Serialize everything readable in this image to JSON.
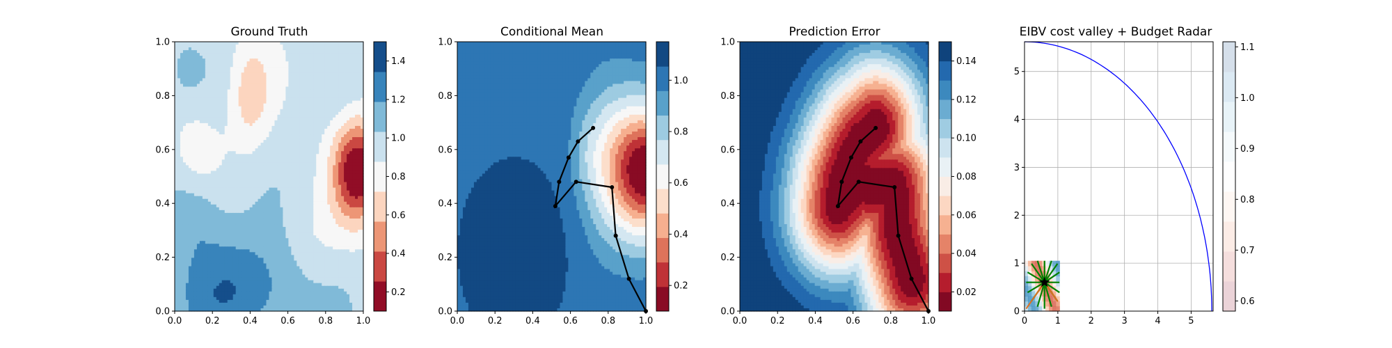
{
  "chart_data": [
    {
      "type": "heatmap",
      "title": "Ground Truth",
      "xlim": [
        0,
        1
      ],
      "ylim": [
        0,
        1
      ],
      "x_ticks": [
        "0.0",
        "0.2",
        "0.4",
        "0.6",
        "0.8",
        "1.0"
      ],
      "y_ticks": [
        "0.0",
        "0.2",
        "0.4",
        "0.6",
        "0.8",
        "1.0"
      ],
      "colorbar": {
        "range": [
          0.1,
          1.5
        ],
        "ticks": [
          "0.2",
          "0.4",
          "0.6",
          "0.8",
          "1.0",
          "1.2",
          "1.4"
        ],
        "tick_values": [
          0.2,
          0.4,
          0.6,
          0.8,
          1.0,
          1.2,
          1.4
        ]
      },
      "field": "ground_truth"
    },
    {
      "type": "heatmap",
      "title": "Conditional Mean",
      "xlim": [
        0,
        1
      ],
      "ylim": [
        0,
        1
      ],
      "x_ticks": [
        "0.0",
        "0.2",
        "0.4",
        "0.6",
        "0.8",
        "1.0"
      ],
      "y_ticks": [
        "0.0",
        "0.2",
        "0.4",
        "0.6",
        "0.8",
        "1.0"
      ],
      "colorbar": {
        "range": [
          0.1,
          1.15
        ],
        "ticks": [
          "0.2",
          "0.4",
          "0.6",
          "0.8",
          "1.0"
        ],
        "tick_values": [
          0.2,
          0.4,
          0.6,
          0.8,
          1.0
        ]
      },
      "field": "conditional_mean",
      "path": [
        [
          1.0,
          0.0
        ],
        [
          0.91,
          0.12
        ],
        [
          0.84,
          0.28
        ],
        [
          0.82,
          0.46
        ],
        [
          0.63,
          0.48
        ],
        [
          0.52,
          0.39
        ],
        [
          0.54,
          0.48
        ],
        [
          0.59,
          0.57
        ],
        [
          0.64,
          0.63
        ],
        [
          0.72,
          0.68
        ]
      ]
    },
    {
      "type": "heatmap",
      "title": "Prediction Error",
      "xlim": [
        0,
        1
      ],
      "ylim": [
        0,
        1
      ],
      "x_ticks": [
        "0.0",
        "0.2",
        "0.4",
        "0.6",
        "0.8",
        "1.0"
      ],
      "y_ticks": [
        "0.0",
        "0.2",
        "0.4",
        "0.6",
        "0.8",
        "1.0"
      ],
      "colorbar": {
        "range": [
          0.01,
          0.15
        ],
        "ticks": [
          "0.02",
          "0.04",
          "0.06",
          "0.08",
          "0.10",
          "0.12",
          "0.14"
        ],
        "tick_values": [
          0.02,
          0.04,
          0.06,
          0.08,
          0.1,
          0.12,
          0.14
        ]
      },
      "field": "prediction_error",
      "path": [
        [
          1.0,
          0.0
        ],
        [
          0.91,
          0.12
        ],
        [
          0.84,
          0.28
        ],
        [
          0.82,
          0.46
        ],
        [
          0.63,
          0.48
        ],
        [
          0.52,
          0.39
        ],
        [
          0.54,
          0.48
        ],
        [
          0.59,
          0.57
        ],
        [
          0.64,
          0.63
        ],
        [
          0.72,
          0.68
        ]
      ]
    },
    {
      "type": "heatmap",
      "title": "EIBV cost valley + Budget Radar",
      "xlim": [
        0,
        5.66
      ],
      "ylim": [
        0,
        5.62
      ],
      "grid": true,
      "x_ticks": [
        "0",
        "1",
        "2",
        "3",
        "4",
        "5"
      ],
      "x_tick_values": [
        0,
        1,
        2,
        3,
        4,
        5
      ],
      "y_ticks": [
        "0",
        "1",
        "2",
        "3",
        "4",
        "5"
      ],
      "y_tick_values": [
        0,
        1,
        2,
        3,
        4,
        5
      ],
      "colorbar": {
        "range": [
          0.58,
          1.11
        ],
        "ticks": [
          "0.6",
          "0.7",
          "0.8",
          "0.9",
          "1.0",
          "1.1"
        ],
        "tick_values": [
          0.6,
          0.7,
          0.8,
          0.9,
          1.0,
          1.1
        ]
      },
      "budget_radius": 5.62,
      "current_location": [
        0.6,
        0.6
      ],
      "colors": {
        "budget_arc": "#0000ff",
        "candidate_lines": "#008000",
        "marker": "#000000"
      }
    }
  ]
}
